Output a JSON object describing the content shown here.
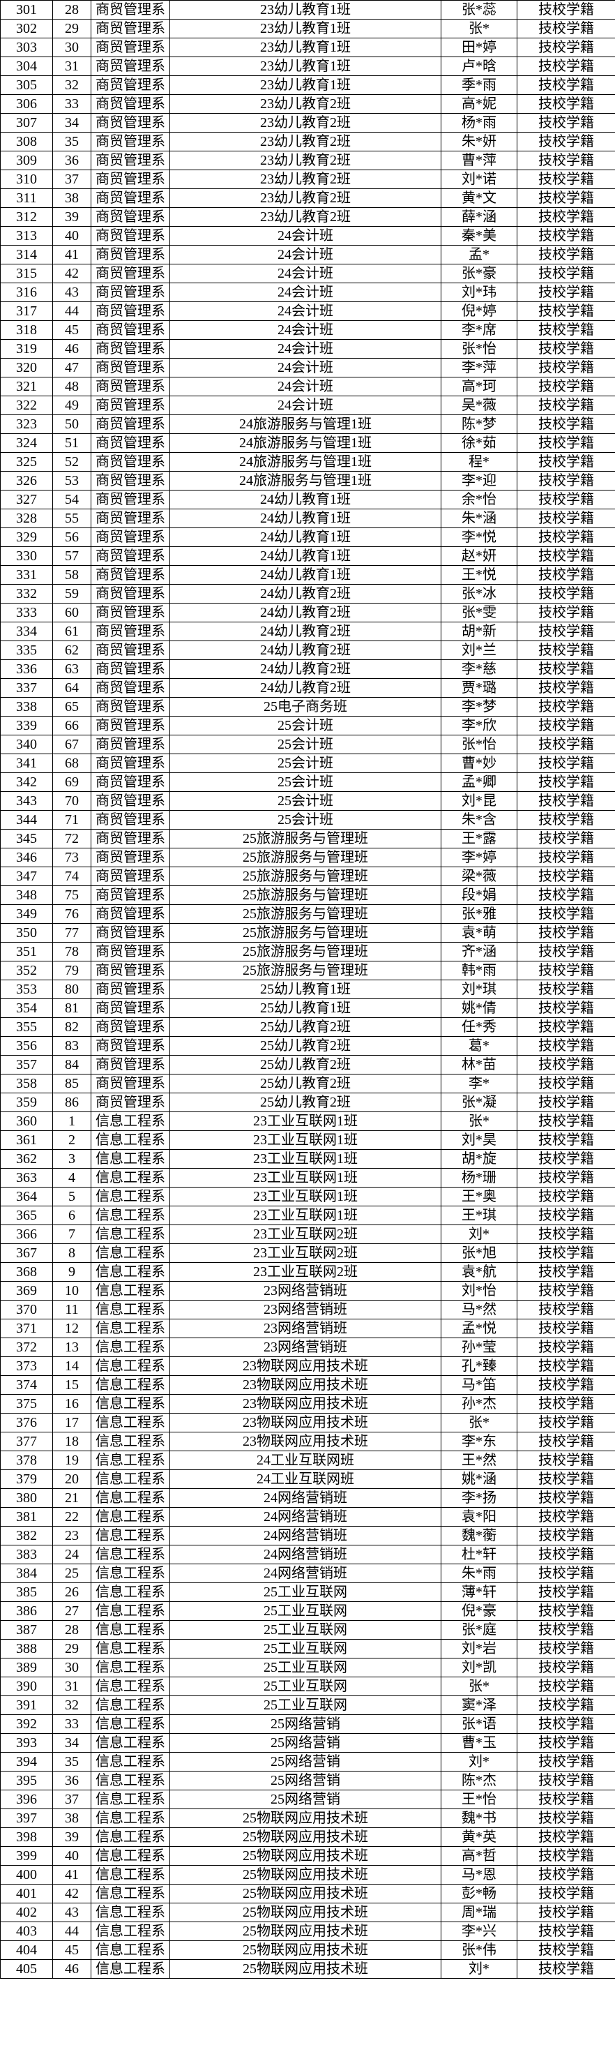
{
  "rows": [
    [
      "301",
      "28",
      "商贸管理系",
      "23幼儿教育1班",
      "张*蕊",
      "技校学籍"
    ],
    [
      "302",
      "29",
      "商贸管理系",
      "23幼儿教育1班",
      "张*",
      "技校学籍"
    ],
    [
      "303",
      "30",
      "商贸管理系",
      "23幼儿教育1班",
      "田*婷",
      "技校学籍"
    ],
    [
      "304",
      "31",
      "商贸管理系",
      "23幼儿教育1班",
      "卢*晗",
      "技校学籍"
    ],
    [
      "305",
      "32",
      "商贸管理系",
      "23幼儿教育1班",
      "季*雨",
      "技校学籍"
    ],
    [
      "306",
      "33",
      "商贸管理系",
      "23幼儿教育2班",
      "高*妮",
      "技校学籍"
    ],
    [
      "307",
      "34",
      "商贸管理系",
      "23幼儿教育2班",
      "杨*雨",
      "技校学籍"
    ],
    [
      "308",
      "35",
      "商贸管理系",
      "23幼儿教育2班",
      "朱*妍",
      "技校学籍"
    ],
    [
      "309",
      "36",
      "商贸管理系",
      "23幼儿教育2班",
      "曹*萍",
      "技校学籍"
    ],
    [
      "310",
      "37",
      "商贸管理系",
      "23幼儿教育2班",
      "刘*诺",
      "技校学籍"
    ],
    [
      "311",
      "38",
      "商贸管理系",
      "23幼儿教育2班",
      "黄*文",
      "技校学籍"
    ],
    [
      "312",
      "39",
      "商贸管理系",
      "23幼儿教育2班",
      "薛*涵",
      "技校学籍"
    ],
    [
      "313",
      "40",
      "商贸管理系",
      "24会计班",
      "秦*美",
      "技校学籍"
    ],
    [
      "314",
      "41",
      "商贸管理系",
      "24会计班",
      "孟*",
      "技校学籍"
    ],
    [
      "315",
      "42",
      "商贸管理系",
      "24会计班",
      "张*豪",
      "技校学籍"
    ],
    [
      "316",
      "43",
      "商贸管理系",
      "24会计班",
      "刘*玮",
      "技校学籍"
    ],
    [
      "317",
      "44",
      "商贸管理系",
      "24会计班",
      "倪*婷",
      "技校学籍"
    ],
    [
      "318",
      "45",
      "商贸管理系",
      "24会计班",
      "李*席",
      "技校学籍"
    ],
    [
      "319",
      "46",
      "商贸管理系",
      "24会计班",
      "张*怡",
      "技校学籍"
    ],
    [
      "320",
      "47",
      "商贸管理系",
      "24会计班",
      "李*萍",
      "技校学籍"
    ],
    [
      "321",
      "48",
      "商贸管理系",
      "24会计班",
      "高*珂",
      "技校学籍"
    ],
    [
      "322",
      "49",
      "商贸管理系",
      "24会计班",
      "吴*薇",
      "技校学籍"
    ],
    [
      "323",
      "50",
      "商贸管理系",
      "24旅游服务与管理1班",
      "陈*梦",
      "技校学籍"
    ],
    [
      "324",
      "51",
      "商贸管理系",
      "24旅游服务与管理1班",
      "徐*茹",
      "技校学籍"
    ],
    [
      "325",
      "52",
      "商贸管理系",
      "24旅游服务与管理1班",
      "程*",
      "技校学籍"
    ],
    [
      "326",
      "53",
      "商贸管理系",
      "24旅游服务与管理1班",
      "李*迎",
      "技校学籍"
    ],
    [
      "327",
      "54",
      "商贸管理系",
      "24幼儿教育1班",
      "余*怡",
      "技校学籍"
    ],
    [
      "328",
      "55",
      "商贸管理系",
      "24幼儿教育1班",
      "朱*涵",
      "技校学籍"
    ],
    [
      "329",
      "56",
      "商贸管理系",
      "24幼儿教育1班",
      "李*悦",
      "技校学籍"
    ],
    [
      "330",
      "57",
      "商贸管理系",
      "24幼儿教育1班",
      "赵*妍",
      "技校学籍"
    ],
    [
      "331",
      "58",
      "商贸管理系",
      "24幼儿教育1班",
      "王*悦",
      "技校学籍"
    ],
    [
      "332",
      "59",
      "商贸管理系",
      "24幼儿教育2班",
      "张*冰",
      "技校学籍"
    ],
    [
      "333",
      "60",
      "商贸管理系",
      "24幼儿教育2班",
      "张*雯",
      "技校学籍"
    ],
    [
      "334",
      "61",
      "商贸管理系",
      "24幼儿教育2班",
      "胡*新",
      "技校学籍"
    ],
    [
      "335",
      "62",
      "商贸管理系",
      "24幼儿教育2班",
      "刘*兰",
      "技校学籍"
    ],
    [
      "336",
      "63",
      "商贸管理系",
      "24幼儿教育2班",
      "李*慈",
      "技校学籍"
    ],
    [
      "337",
      "64",
      "商贸管理系",
      "24幼儿教育2班",
      "贾*璐",
      "技校学籍"
    ],
    [
      "338",
      "65",
      "商贸管理系",
      "25电子商务班",
      "李*梦",
      "技校学籍"
    ],
    [
      "339",
      "66",
      "商贸管理系",
      "25会计班",
      "李*欣",
      "技校学籍"
    ],
    [
      "340",
      "67",
      "商贸管理系",
      "25会计班",
      "张*怡",
      "技校学籍"
    ],
    [
      "341",
      "68",
      "商贸管理系",
      "25会计班",
      "曹*妙",
      "技校学籍"
    ],
    [
      "342",
      "69",
      "商贸管理系",
      "25会计班",
      "孟*卿",
      "技校学籍"
    ],
    [
      "343",
      "70",
      "商贸管理系",
      "25会计班",
      "刘*昆",
      "技校学籍"
    ],
    [
      "344",
      "71",
      "商贸管理系",
      "25会计班",
      "朱*含",
      "技校学籍"
    ],
    [
      "345",
      "72",
      "商贸管理系",
      "25旅游服务与管理班",
      "王*露",
      "技校学籍"
    ],
    [
      "346",
      "73",
      "商贸管理系",
      "25旅游服务与管理班",
      "李*婷",
      "技校学籍"
    ],
    [
      "347",
      "74",
      "商贸管理系",
      "25旅游服务与管理班",
      "梁*薇",
      "技校学籍"
    ],
    [
      "348",
      "75",
      "商贸管理系",
      "25旅游服务与管理班",
      "段*娟",
      "技校学籍"
    ],
    [
      "349",
      "76",
      "商贸管理系",
      "25旅游服务与管理班",
      "张*雅",
      "技校学籍"
    ],
    [
      "350",
      "77",
      "商贸管理系",
      "25旅游服务与管理班",
      "袁*萌",
      "技校学籍"
    ],
    [
      "351",
      "78",
      "商贸管理系",
      "25旅游服务与管理班",
      "齐*涵",
      "技校学籍"
    ],
    [
      "352",
      "79",
      "商贸管理系",
      "25旅游服务与管理班",
      "韩*雨",
      "技校学籍"
    ],
    [
      "353",
      "80",
      "商贸管理系",
      "25幼儿教育1班",
      "刘*琪",
      "技校学籍"
    ],
    [
      "354",
      "81",
      "商贸管理系",
      "25幼儿教育1班",
      "姚*倩",
      "技校学籍"
    ],
    [
      "355",
      "82",
      "商贸管理系",
      "25幼儿教育2班",
      "任*秀",
      "技校学籍"
    ],
    [
      "356",
      "83",
      "商贸管理系",
      "25幼儿教育2班",
      "葛*",
      "技校学籍"
    ],
    [
      "357",
      "84",
      "商贸管理系",
      "25幼儿教育2班",
      "林*苗",
      "技校学籍"
    ],
    [
      "358",
      "85",
      "商贸管理系",
      "25幼儿教育2班",
      "李*",
      "技校学籍"
    ],
    [
      "359",
      "86",
      "商贸管理系",
      "25幼儿教育2班",
      "张*凝",
      "技校学籍"
    ],
    [
      "360",
      "1",
      "信息工程系",
      "23工业互联网1班",
      "张*",
      "技校学籍"
    ],
    [
      "361",
      "2",
      "信息工程系",
      "23工业互联网1班",
      "刘*昊",
      "技校学籍"
    ],
    [
      "362",
      "3",
      "信息工程系",
      "23工业互联网1班",
      "胡*旋",
      "技校学籍"
    ],
    [
      "363",
      "4",
      "信息工程系",
      "23工业互联网1班",
      "杨*珊",
      "技校学籍"
    ],
    [
      "364",
      "5",
      "信息工程系",
      "23工业互联网1班",
      "王*奥",
      "技校学籍"
    ],
    [
      "365",
      "6",
      "信息工程系",
      "23工业互联网1班",
      "王*琪",
      "技校学籍"
    ],
    [
      "366",
      "7",
      "信息工程系",
      "23工业互联网2班",
      "刘*",
      "技校学籍"
    ],
    [
      "367",
      "8",
      "信息工程系",
      "23工业互联网2班",
      "张*旭",
      "技校学籍"
    ],
    [
      "368",
      "9",
      "信息工程系",
      "23工业互联网2班",
      "袁*航",
      "技校学籍"
    ],
    [
      "369",
      "10",
      "信息工程系",
      "23网络营销班",
      "刘*怡",
      "技校学籍"
    ],
    [
      "370",
      "11",
      "信息工程系",
      "23网络营销班",
      "马*然",
      "技校学籍"
    ],
    [
      "371",
      "12",
      "信息工程系",
      "23网络营销班",
      "孟*悦",
      "技校学籍"
    ],
    [
      "372",
      "13",
      "信息工程系",
      "23网络营销班",
      "孙*莹",
      "技校学籍"
    ],
    [
      "373",
      "14",
      "信息工程系",
      "23物联网应用技术班",
      "孔*臻",
      "技校学籍"
    ],
    [
      "374",
      "15",
      "信息工程系",
      "23物联网应用技术班",
      "马*笛",
      "技校学籍"
    ],
    [
      "375",
      "16",
      "信息工程系",
      "23物联网应用技术班",
      "孙*杰",
      "技校学籍"
    ],
    [
      "376",
      "17",
      "信息工程系",
      "23物联网应用技术班",
      "张*",
      "技校学籍"
    ],
    [
      "377",
      "18",
      "信息工程系",
      "23物联网应用技术班",
      "李*东",
      "技校学籍"
    ],
    [
      "378",
      "19",
      "信息工程系",
      "24工业互联网班",
      "王*然",
      "技校学籍"
    ],
    [
      "379",
      "20",
      "信息工程系",
      "24工业互联网班",
      "姚*涵",
      "技校学籍"
    ],
    [
      "380",
      "21",
      "信息工程系",
      "24网络营销班",
      "李*扬",
      "技校学籍"
    ],
    [
      "381",
      "22",
      "信息工程系",
      "24网络营销班",
      "袁*阳",
      "技校学籍"
    ],
    [
      "382",
      "23",
      "信息工程系",
      "24网络营销班",
      "魏*蘅",
      "技校学籍"
    ],
    [
      "383",
      "24",
      "信息工程系",
      "24网络营销班",
      "杜*轩",
      "技校学籍"
    ],
    [
      "384",
      "25",
      "信息工程系",
      "24网络营销班",
      "朱*雨",
      "技校学籍"
    ],
    [
      "385",
      "26",
      "信息工程系",
      "25工业互联网",
      "薄*轩",
      "技校学籍"
    ],
    [
      "386",
      "27",
      "信息工程系",
      "25工业互联网",
      "倪*豪",
      "技校学籍"
    ],
    [
      "387",
      "28",
      "信息工程系",
      "25工业互联网",
      "张*庭",
      "技校学籍"
    ],
    [
      "388",
      "29",
      "信息工程系",
      "25工业互联网",
      "刘*岩",
      "技校学籍"
    ],
    [
      "389",
      "30",
      "信息工程系",
      "25工业互联网",
      "刘*凯",
      "技校学籍"
    ],
    [
      "390",
      "31",
      "信息工程系",
      "25工业互联网",
      "张*",
      "技校学籍"
    ],
    [
      "391",
      "32",
      "信息工程系",
      "25工业互联网",
      "窦*泽",
      "技校学籍"
    ],
    [
      "392",
      "33",
      "信息工程系",
      "25网络营销",
      "张*语",
      "技校学籍"
    ],
    [
      "393",
      "34",
      "信息工程系",
      "25网络营销",
      "曹*玉",
      "技校学籍"
    ],
    [
      "394",
      "35",
      "信息工程系",
      "25网络营销",
      "刘*",
      "技校学籍"
    ],
    [
      "395",
      "36",
      "信息工程系",
      "25网络营销",
      "陈*杰",
      "技校学籍"
    ],
    [
      "396",
      "37",
      "信息工程系",
      "25网络营销",
      "王*怡",
      "技校学籍"
    ],
    [
      "397",
      "38",
      "信息工程系",
      "25物联网应用技术班",
      "魏*书",
      "技校学籍"
    ],
    [
      "398",
      "39",
      "信息工程系",
      "25物联网应用技术班",
      "黄*英",
      "技校学籍"
    ],
    [
      "399",
      "40",
      "信息工程系",
      "25物联网应用技术班",
      "高*哲",
      "技校学籍"
    ],
    [
      "400",
      "41",
      "信息工程系",
      "25物联网应用技术班",
      "马*恩",
      "技校学籍"
    ],
    [
      "401",
      "42",
      "信息工程系",
      "25物联网应用技术班",
      "彭*畅",
      "技校学籍"
    ],
    [
      "402",
      "43",
      "信息工程系",
      "25物联网应用技术班",
      "周*瑞",
      "技校学籍"
    ],
    [
      "403",
      "44",
      "信息工程系",
      "25物联网应用技术班",
      "李*兴",
      "技校学籍"
    ],
    [
      "404",
      "45",
      "信息工程系",
      "25物联网应用技术班",
      "张*伟",
      "技校学籍"
    ],
    [
      "405",
      "46",
      "信息工程系",
      "25物联网应用技术班",
      "刘*",
      "技校学籍"
    ]
  ]
}
